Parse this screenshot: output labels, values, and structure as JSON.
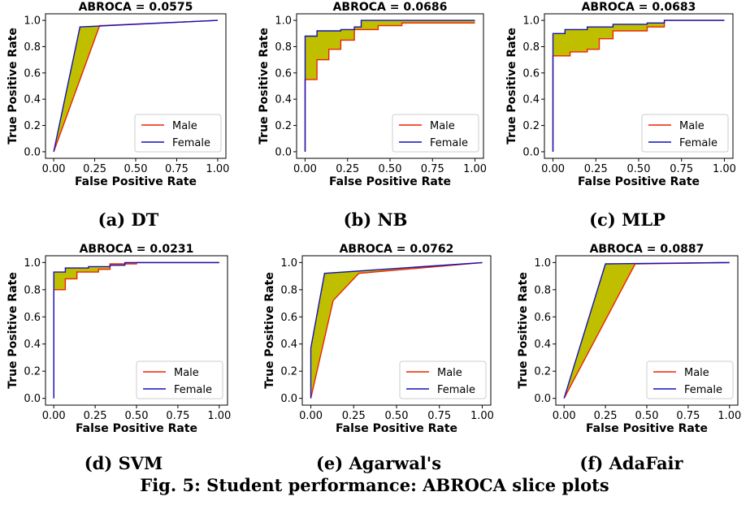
{
  "figure_caption": "Fig. 5: Student performance: ABROCA slice plots",
  "colors": {
    "male": "#ee2200",
    "female": "#1111bb",
    "fill": "#bfbf00",
    "axis": "#000000"
  },
  "chart_data": [
    {
      "type": "line",
      "title": "ABROCA = 0.0575",
      "caption": "(a) DT",
      "xlabel": "False Positive Rate",
      "ylabel": "True Positive Rate",
      "xlim": [
        0,
        1
      ],
      "ylim": [
        0,
        1
      ],
      "xticks": [
        "0.00",
        "0.25",
        "0.50",
        "0.75",
        "1.00"
      ],
      "yticks": [
        "0.0",
        "0.2",
        "0.4",
        "0.6",
        "0.8",
        "1.0"
      ],
      "legend": "bottom-right",
      "series": [
        {
          "name": "Male",
          "x": [
            0,
            0.28,
            1
          ],
          "y": [
            0,
            0.96,
            1
          ]
        },
        {
          "name": "Female",
          "x": [
            0,
            0.16,
            1
          ],
          "y": [
            0,
            0.95,
            1
          ]
        }
      ]
    },
    {
      "type": "line",
      "title": "ABROCA = 0.0686",
      "caption": "(b) NB",
      "xlabel": "False Positive Rate",
      "ylabel": "True Positive Rate",
      "xlim": [
        0,
        1
      ],
      "ylim": [
        0,
        1
      ],
      "xticks": [
        "0.00",
        "0.25",
        "0.50",
        "0.75",
        "1.00"
      ],
      "yticks": [
        "0.0",
        "0.2",
        "0.4",
        "0.6",
        "0.8",
        "1.0"
      ],
      "legend": "bottom-right",
      "series": [
        {
          "name": "Male",
          "x": [
            0,
            0,
            0.07,
            0.07,
            0.14,
            0.14,
            0.21,
            0.21,
            0.29,
            0.29,
            0.43,
            0.43,
            0.57,
            0.57,
            1
          ],
          "y": [
            0,
            0.55,
            0.55,
            0.7,
            0.7,
            0.78,
            0.78,
            0.85,
            0.85,
            0.93,
            0.93,
            0.96,
            0.96,
            0.98,
            0.98
          ]
        },
        {
          "name": "Female",
          "x": [
            0,
            0,
            0.07,
            0.07,
            0.21,
            0.21,
            0.29,
            0.29,
            0.33,
            0.33,
            1
          ],
          "y": [
            0,
            0.88,
            0.88,
            0.92,
            0.92,
            0.93,
            0.93,
            0.95,
            0.95,
            1.0,
            1.0
          ]
        }
      ]
    },
    {
      "type": "line",
      "title": "ABROCA = 0.0683",
      "caption": "(c) MLP",
      "xlabel": "False Positive Rate",
      "ylabel": "True Positive Rate",
      "xlim": [
        0,
        1
      ],
      "ylim": [
        0,
        1
      ],
      "xticks": [
        "0.00",
        "0.25",
        "0.50",
        "0.75",
        "1.00"
      ],
      "yticks": [
        "0.0",
        "0.2",
        "0.4",
        "0.6",
        "0.8",
        "1.0"
      ],
      "legend": "bottom-right",
      "series": [
        {
          "name": "Male",
          "x": [
            0,
            0,
            0.1,
            0.1,
            0.2,
            0.2,
            0.27,
            0.27,
            0.35,
            0.35,
            0.55,
            0.55,
            0.65,
            0.65,
            1
          ],
          "y": [
            0,
            0.73,
            0.73,
            0.76,
            0.76,
            0.78,
            0.78,
            0.86,
            0.86,
            0.92,
            0.92,
            0.95,
            0.95,
            1.0,
            1.0
          ]
        },
        {
          "name": "Female",
          "x": [
            0,
            0,
            0.07,
            0.07,
            0.2,
            0.2,
            0.35,
            0.35,
            0.55,
            0.55,
            0.65,
            0.65,
            1
          ],
          "y": [
            0,
            0.9,
            0.9,
            0.93,
            0.93,
            0.95,
            0.95,
            0.97,
            0.97,
            0.98,
            0.98,
            1.0,
            1.0
          ]
        }
      ]
    },
    {
      "type": "line",
      "title": "ABROCA = 0.0231",
      "caption": "(d) SVM",
      "xlabel": "False Positive Rate",
      "ylabel": "True Positive Rate",
      "xlim": [
        0,
        1
      ],
      "ylim": [
        0,
        1
      ],
      "xticks": [
        "0.00",
        "0.25",
        "0.50",
        "0.75",
        "1.00"
      ],
      "yticks": [
        "0.0",
        "0.2",
        "0.4",
        "0.6",
        "0.8",
        "1.0"
      ],
      "legend": "bottom-right",
      "series": [
        {
          "name": "Male",
          "x": [
            0,
            0,
            0.07,
            0.07,
            0.14,
            0.14,
            0.27,
            0.27,
            0.34,
            0.34,
            0.5,
            0.5,
            1
          ],
          "y": [
            0,
            0.8,
            0.8,
            0.88,
            0.88,
            0.93,
            0.93,
            0.95,
            0.95,
            0.99,
            0.99,
            1.0,
            1.0
          ]
        },
        {
          "name": "Female",
          "x": [
            0,
            0,
            0.07,
            0.07,
            0.21,
            0.21,
            0.34,
            0.34,
            0.43,
            0.43,
            1
          ],
          "y": [
            0,
            0.93,
            0.93,
            0.96,
            0.96,
            0.97,
            0.97,
            0.98,
            0.98,
            1.0,
            1.0
          ]
        }
      ]
    },
    {
      "type": "line",
      "title": "ABROCA = 0.0762",
      "caption": "(e) Agarwal's",
      "xlabel": "False Positive Rate",
      "ylabel": "True Positive Rate",
      "xlim": [
        0,
        1
      ],
      "ylim": [
        0,
        1
      ],
      "xticks": [
        "0.00",
        "0.25",
        "0.50",
        "0.75",
        "1.00"
      ],
      "yticks": [
        "0.0",
        "0.2",
        "0.4",
        "0.6",
        "0.8",
        "1.0"
      ],
      "legend": "bottom-right",
      "series": [
        {
          "name": "Male",
          "x": [
            0,
            0.13,
            0.28,
            1
          ],
          "y": [
            0,
            0.72,
            0.92,
            1
          ]
        },
        {
          "name": "Female",
          "x": [
            0,
            0,
            0.08,
            1
          ],
          "y": [
            0,
            0.37,
            0.92,
            1
          ]
        }
      ]
    },
    {
      "type": "line",
      "title": "ABROCA = 0.0887",
      "caption": "(f) AdaFair",
      "xlabel": "False Positive Rate",
      "ylabel": "True Positive Rate",
      "xlim": [
        0,
        1
      ],
      "ylim": [
        0,
        1
      ],
      "xticks": [
        "0.00",
        "0.25",
        "0.50",
        "0.75",
        "1.00"
      ],
      "yticks": [
        "0.0",
        "0.2",
        "0.4",
        "0.6",
        "0.8",
        "1.0"
      ],
      "legend": "bottom-right",
      "series": [
        {
          "name": "Male",
          "x": [
            0,
            0.43,
            1
          ],
          "y": [
            0,
            0.99,
            1
          ]
        },
        {
          "name": "Female",
          "x": [
            0,
            0.25,
            1
          ],
          "y": [
            0,
            0.99,
            1
          ]
        }
      ]
    }
  ]
}
